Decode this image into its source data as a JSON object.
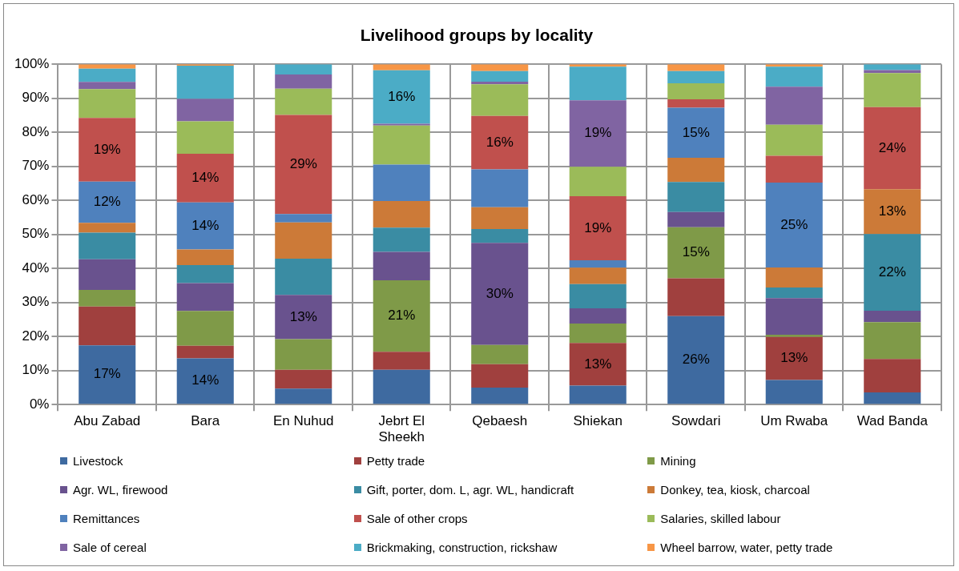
{
  "chart_data": {
    "type": "bar",
    "title": "Livelihood groups by locality",
    "stacked": true,
    "grid": true,
    "legend": "bottom",
    "categories": [
      "Abu Zabad",
      "Bara",
      "En Nuhud",
      "Jebrt El Sheekh",
      "Qebaesh",
      "Shiekan",
      "Sowdari",
      "Um Rwaba",
      "Wad Banda"
    ],
    "ylim": [
      0,
      100
    ],
    "yticks": [
      {
        "value": 0,
        "label": "0%"
      },
      {
        "value": 10,
        "label": "10%"
      },
      {
        "value": 20,
        "label": "20%"
      },
      {
        "value": 30,
        "label": "30%"
      },
      {
        "value": 40,
        "label": "40%"
      },
      {
        "value": 50,
        "label": "50%"
      },
      {
        "value": 60,
        "label": "60%"
      },
      {
        "value": 70,
        "label": "70%"
      },
      {
        "value": 80,
        "label": "80%"
      },
      {
        "value": 90,
        "label": "90%"
      },
      {
        "value": 100,
        "label": "100%"
      }
    ],
    "series": [
      {
        "name": "Livestock",
        "color": "#3e6aa0",
        "values": [
          17.4,
          13.6,
          4.7,
          10.2,
          5.0,
          5.6,
          26.0,
          7.2,
          3.6
        ],
        "value_labels": [
          "17%",
          "14%",
          null,
          null,
          null,
          null,
          "26%",
          null,
          null
        ]
      },
      {
        "name": "Petty trade",
        "color": "#a0403e",
        "values": [
          11.4,
          3.7,
          5.5,
          5.3,
          6.9,
          12.5,
          11.1,
          12.7,
          9.8
        ],
        "value_labels": [
          null,
          null,
          null,
          null,
          null,
          "13%",
          null,
          "13%",
          null
        ]
      },
      {
        "name": "Mining",
        "color": "#7f9a48",
        "values": [
          4.9,
          10.2,
          9.0,
          21.0,
          5.6,
          5.7,
          15.0,
          0.6,
          10.8
        ],
        "value_labels": [
          null,
          null,
          null,
          "21%",
          null,
          null,
          "15%",
          null,
          null
        ]
      },
      {
        "name": "Agr. WL, firewood",
        "color": "#69528e",
        "values": [
          9.0,
          8.2,
          13.0,
          8.4,
          30.0,
          4.5,
          4.5,
          10.8,
          3.4
        ],
        "value_labels": [
          null,
          null,
          "13%",
          null,
          "30%",
          null,
          null,
          null,
          null
        ]
      },
      {
        "name": "Gift, porter, dom. L, agr. WL, handicraft",
        "color": "#3a8ca3",
        "values": [
          7.8,
          5.3,
          10.7,
          7.1,
          4.1,
          7.1,
          8.8,
          3.1,
          22.5
        ],
        "value_labels": [
          null,
          null,
          null,
          null,
          null,
          null,
          null,
          null,
          "22%"
        ]
      },
      {
        "name": "Donkey, tea, kiosk, charcoal",
        "color": "#cc7a38",
        "values": [
          2.9,
          4.6,
          10.6,
          7.8,
          6.4,
          4.8,
          7.1,
          5.9,
          13.2
        ],
        "value_labels": [
          null,
          null,
          null,
          null,
          null,
          null,
          null,
          null,
          "13%"
        ]
      },
      {
        "name": "Remittances",
        "color": "#4f81bd",
        "values": [
          12.1,
          13.8,
          2.5,
          10.7,
          11.1,
          2.2,
          14.7,
          24.9,
          0
        ],
        "value_labels": [
          "12%",
          "14%",
          null,
          null,
          null,
          null,
          "15%",
          "25%",
          null
        ]
      },
      {
        "name": "Sale of other crops",
        "color": "#c0504d",
        "values": [
          18.7,
          14.3,
          29.1,
          0,
          15.7,
          18.8,
          2.5,
          7.9,
          24.1
        ],
        "value_labels": [
          "19%",
          "14%",
          "29%",
          null,
          "16%",
          "19%",
          null,
          null,
          "24%"
        ]
      },
      {
        "name": "Salaries, skilled labour",
        "color": "#9bbb59",
        "values": [
          8.5,
          9.5,
          7.7,
          11.5,
          9.3,
          8.7,
          4.7,
          9.1,
          10.0
        ]
      },
      {
        "name": "Sale of cereal",
        "color": "#8064a2",
        "values": [
          2.1,
          6.6,
          4.2,
          0.5,
          0.8,
          19.5,
          0,
          11.2,
          0.9
        ],
        "value_labels": [
          null,
          null,
          null,
          null,
          null,
          "19%",
          null,
          null,
          null
        ]
      },
      {
        "name": "Brickmaking, construction, rickshaw",
        "color": "#4bacc6",
        "values": [
          3.9,
          9.8,
          3.0,
          15.7,
          3.1,
          9.9,
          3.6,
          5.9,
          1.7
        ],
        "value_labels": [
          null,
          null,
          null,
          "16%",
          null,
          null,
          null,
          null,
          null
        ]
      },
      {
        "name": "Wheel barrow, water, petty trade",
        "color": "#f79646",
        "values": [
          1.3,
          0.4,
          0,
          1.8,
          2.0,
          0.7,
          2.0,
          0.7,
          0
        ]
      }
    ]
  }
}
